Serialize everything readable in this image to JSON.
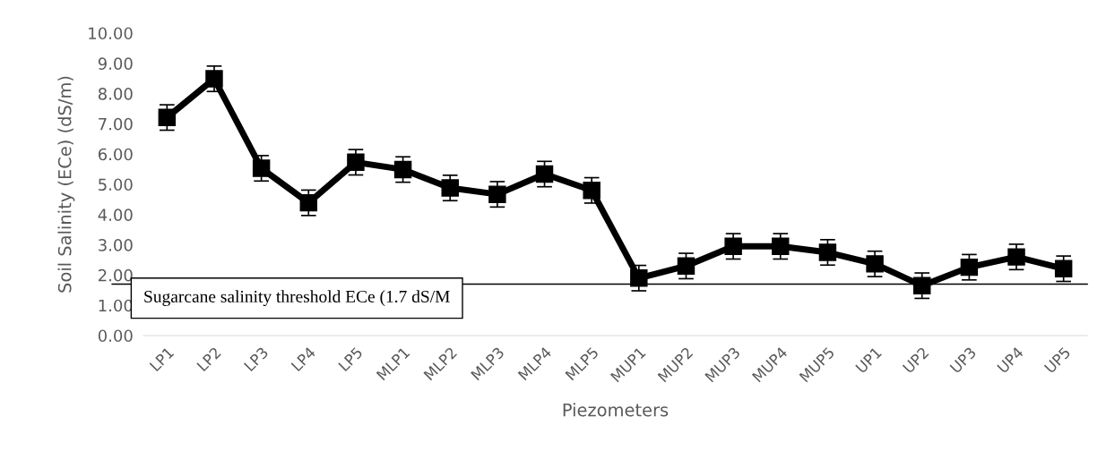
{
  "chart_data": {
    "type": "line",
    "xlabel": "Piezometers",
    "ylabel": "Soil Salinity (ECe) (dS/m)",
    "categories": [
      "LP1",
      "LP2",
      "LP3",
      "LP4",
      "LP5",
      "MLP1",
      "MLP2",
      "MLP3",
      "MLP4",
      "MLP5",
      "MUP1",
      "MUP2",
      "MUP3",
      "MUP4",
      "MUP5",
      "UP1",
      "UP2",
      "UP3",
      "UP4",
      "UP5"
    ],
    "series": [
      {
        "color": "#000000",
        "values": [
          7.21,
          8.49,
          5.53,
          4.39,
          5.73,
          5.49,
          4.88,
          4.67,
          5.34,
          4.8,
          1.9,
          2.3,
          2.95,
          2.95,
          2.75,
          2.37,
          1.65,
          2.26,
          2.6,
          2.21
        ],
        "errors": [
          0.42,
          0.42,
          0.42,
          0.42,
          0.42,
          0.42,
          0.42,
          0.42,
          0.42,
          0.42,
          0.42,
          0.42,
          0.42,
          0.42,
          0.42,
          0.42,
          0.42,
          0.42,
          0.42,
          0.42
        ]
      }
    ],
    "ylim": [
      0,
      10
    ],
    "yticks": [
      {
        "value": 0,
        "label": "0.00"
      },
      {
        "value": 1,
        "label": "1.00"
      },
      {
        "value": 2,
        "label": "2.00"
      },
      {
        "value": 3,
        "label": "3.00"
      },
      {
        "value": 4,
        "label": "4.00"
      },
      {
        "value": 5,
        "label": "5.00"
      },
      {
        "value": 6,
        "label": "6.00"
      },
      {
        "value": 7,
        "label": "7.00"
      },
      {
        "value": 8,
        "label": "8.00"
      },
      {
        "value": 9,
        "label": "9.00"
      },
      {
        "value": 10,
        "label": "10.00"
      }
    ],
    "ref_lines": [
      {
        "axis": "y",
        "value": 1.7,
        "label": "Sugarcane salinity threshold ECe (1.7 dS/M",
        "color": "#000000"
      }
    ],
    "marker": "square",
    "line_style": "solid",
    "grid": false,
    "legend": false
  }
}
